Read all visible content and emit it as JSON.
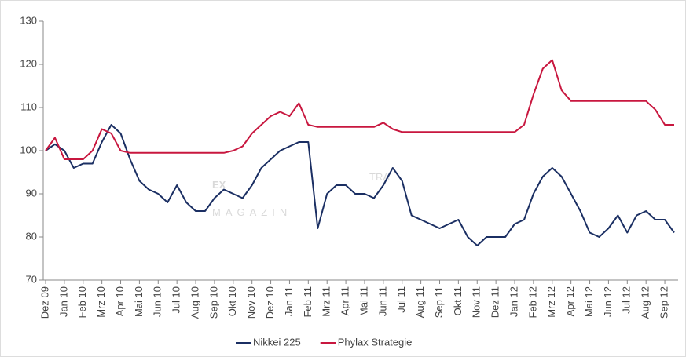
{
  "chart_data": {
    "type": "line",
    "categories": [
      "Dez 09",
      null,
      "Jan 10",
      null,
      "Feb 10",
      null,
      "Mrz 10",
      null,
      "Apr 10",
      null,
      "Mai 10",
      null,
      "Jun 10",
      null,
      "Jul 10",
      null,
      "Aug 10",
      null,
      "Sep 10",
      null,
      "Okt 10",
      null,
      "Nov 10",
      null,
      "Dez 10",
      null,
      "Jan 11",
      null,
      "Feb 11",
      null,
      "Mrz 11",
      null,
      "Apr 11",
      null,
      "Mai 11",
      null,
      "Jun 11",
      null,
      "Jul 11",
      null,
      "Aug 11",
      null,
      "Sep 11",
      null,
      "Okt 11",
      null,
      "Nov 11",
      null,
      "Dez 11",
      null,
      "Jan 12",
      null,
      "Feb 12",
      null,
      "Mrz 12",
      null,
      "Apr 12",
      null,
      "Mai 12",
      null,
      "Jun 12",
      null,
      "Jul 12",
      null,
      "Aug 12",
      null,
      "Sep 12",
      null
    ],
    "series": [
      {
        "name": "Nikkei 225",
        "color": "#1b2f63",
        "values": [
          100,
          101.5,
          100,
          96,
          97,
          97,
          102,
          106,
          104,
          98,
          93,
          91,
          90,
          88,
          92,
          88,
          86,
          86,
          89,
          91,
          90,
          89,
          92,
          96,
          98,
          100,
          101,
          102,
          102,
          82,
          90,
          92,
          92,
          90,
          90,
          89,
          92,
          96,
          93,
          85,
          84,
          83,
          82,
          83,
          84,
          80,
          78,
          80,
          80,
          80,
          83,
          84,
          90,
          94,
          96,
          94,
          90,
          86,
          81,
          80,
          82,
          85,
          81,
          85,
          86,
          84,
          84,
          81
        ]
      },
      {
        "name": "Phylax Strategie",
        "color": "#c8173f",
        "values": [
          100,
          103,
          98,
          98,
          98,
          100,
          105,
          104,
          100,
          99.5,
          99.5,
          99.5,
          99.5,
          99.5,
          99.5,
          99.5,
          99.5,
          99.5,
          99.5,
          99.5,
          100,
          101,
          104,
          106,
          108,
          109,
          108,
          111,
          106,
          105.5,
          105.5,
          105.5,
          105.5,
          105.5,
          105.5,
          105.5,
          106.5,
          105,
          104.3,
          104.3,
          104.3,
          104.3,
          104.3,
          104.3,
          104.3,
          104.3,
          104.3,
          104.3,
          104.3,
          104.3,
          104.3,
          106,
          113,
          119,
          121,
          114,
          111.5,
          111.5,
          111.5,
          111.5,
          111.5,
          111.5,
          111.5,
          111.5,
          111.5,
          109.5,
          106,
          106
        ]
      }
    ],
    "ylim": [
      70,
      130
    ],
    "yticks": [
      70,
      80,
      90,
      100,
      110,
      120,
      130
    ],
    "grid": false,
    "legend": "bottom",
    "watermark": {
      "top": "EX",
      "side": "TRA",
      "bottom": "MAGAZIN"
    }
  }
}
